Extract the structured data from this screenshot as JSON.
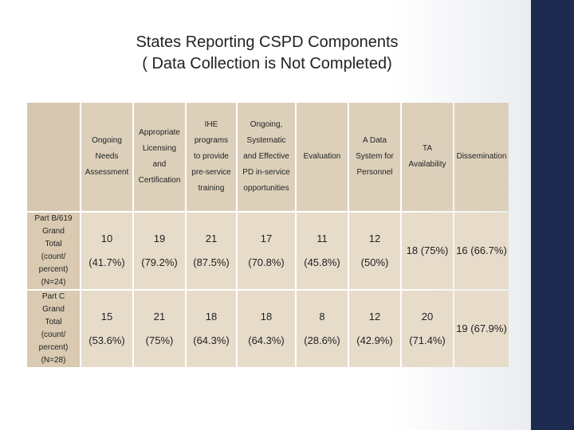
{
  "title": {
    "line1": "States Reporting CSPD Components",
    "line2": "( Data Collection is Not Completed)"
  },
  "headers": [
    [
      "Ongoing",
      "Needs",
      "Assessment"
    ],
    [
      "Appropriate",
      "Licensing",
      "and",
      "Certification"
    ],
    [
      "IHE",
      "programs",
      "to provide",
      "pre-service",
      "training"
    ],
    [
      "Ongoing,",
      "Systematic",
      "and Effective",
      "PD in-service",
      "opportunities"
    ],
    [
      "Evaluation"
    ],
    [
      "A Data",
      "System for",
      "Personnel"
    ],
    [
      "TA",
      "Availability"
    ],
    [
      "Dissemination"
    ]
  ],
  "rows": [
    {
      "label": [
        "Part B/619",
        "Grand",
        "Total",
        "(count/",
        "percent)",
        "(N=24)"
      ],
      "cells": [
        [
          "10",
          "(41.7%)"
        ],
        [
          "19",
          "(79.2%)"
        ],
        [
          "21",
          "(87.5%)"
        ],
        [
          "17",
          "(70.8%)"
        ],
        [
          "11",
          "(45.8%)"
        ],
        [
          "12",
          "(50%)"
        ],
        [
          "18 (75%)"
        ],
        [
          "16 (66.7%)"
        ]
      ]
    },
    {
      "label": [
        "Part C",
        "Grand",
        "Total",
        "(count/",
        "percent)",
        "(N=28)"
      ],
      "cells": [
        [
          "15",
          "(53.6%)"
        ],
        [
          "21",
          "(75%)"
        ],
        [
          "18",
          "(64.3%)"
        ],
        [
          "18",
          "(64.3%)"
        ],
        [
          "8",
          "(28.6%)"
        ],
        [
          "12",
          "(42.9%)"
        ],
        [
          "20",
          "(71.4%)"
        ],
        [
          "19 (67.9%)"
        ]
      ]
    }
  ]
}
